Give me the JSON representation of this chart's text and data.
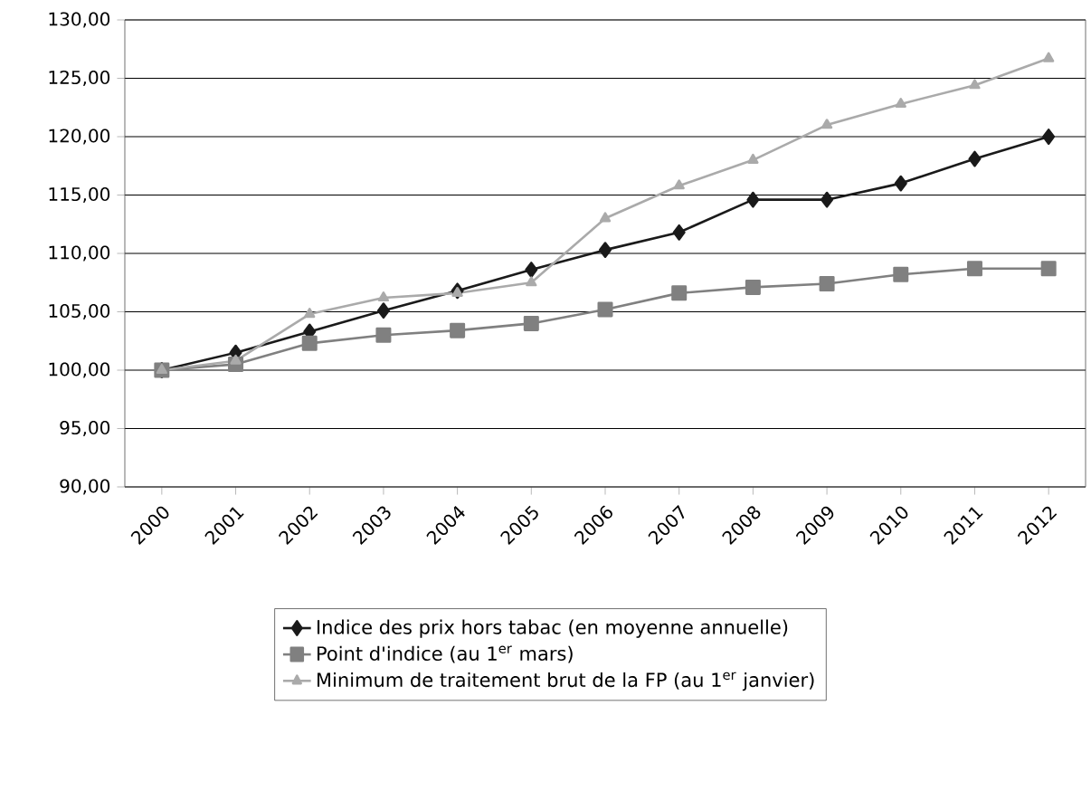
{
  "chart_data": {
    "type": "line",
    "categories": [
      "2000",
      "2001",
      "2002",
      "2003",
      "2004",
      "2005",
      "2006",
      "2007",
      "2008",
      "2009",
      "2010",
      "2011",
      "2012"
    ],
    "series": [
      {
        "name": "Indice des prix hors tabac (en moyenne annuelle)",
        "color": "#1a1a1a",
        "marker": "diamond",
        "values": [
          100,
          101.5,
          103.3,
          105.1,
          106.8,
          108.6,
          110.3,
          111.8,
          114.6,
          114.6,
          116.0,
          118.1,
          120.0
        ]
      },
      {
        "name": "Point d'indice (au 1$^{er}$ mars)",
        "color": "#808080",
        "marker": "square",
        "values": [
          100,
          100.5,
          102.3,
          103.0,
          103.4,
          104.0,
          105.2,
          106.6,
          107.1,
          107.4,
          108.2,
          108.7,
          108.7
        ]
      },
      {
        "name": "Minimum de traitement brut de la FP (au 1$^{er}$ janvier)",
        "color": "#aaaaaa",
        "marker": "triangle",
        "values": [
          100,
          100.8,
          104.8,
          106.2,
          106.6,
          107.5,
          113.0,
          115.8,
          118.0,
          121.0,
          122.8,
          124.4,
          126.7
        ]
      }
    ],
    "ylim": [
      90,
      130
    ],
    "yticks": [
      {
        "value": 90,
        "label": "90,00"
      },
      {
        "value": 95,
        "label": "95,00"
      },
      {
        "value": 100,
        "label": "100,00"
      },
      {
        "value": 105,
        "label": "105,00"
      },
      {
        "value": 110,
        "label": "110,00"
      },
      {
        "value": 115,
        "label": "115,00"
      },
      {
        "value": 120,
        "label": "120,00"
      },
      {
        "value": 125,
        "label": "125,00"
      },
      {
        "value": 130,
        "label": "130,00"
      }
    ],
    "grid": "y",
    "legend": "bottom",
    "line_style": "solid"
  }
}
